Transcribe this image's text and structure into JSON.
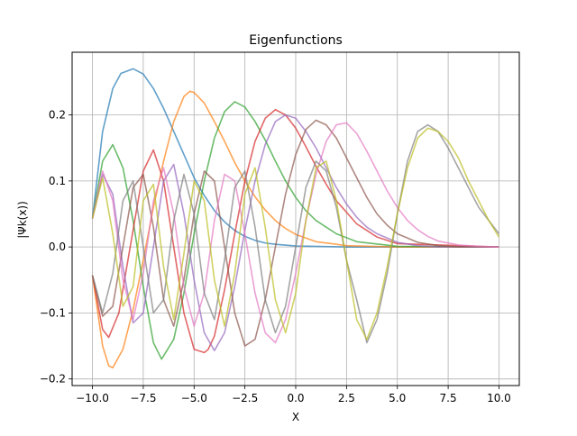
{
  "chart_data": {
    "type": "line",
    "title": "Eigenfunctions",
    "xlabel": "X",
    "ylabel": "|Ψk(x))",
    "xlim": [
      -11,
      11
    ],
    "ylim": [
      -0.21,
      0.295
    ],
    "xticks": [
      -10.0,
      -7.5,
      -5.0,
      -2.5,
      0.0,
      2.5,
      5.0,
      7.5,
      10.0
    ],
    "xtick_labels": [
      "−10.0",
      "−7.5",
      "−5.0",
      "−2.5",
      "0.0",
      "2.5",
      "5.0",
      "7.5",
      "10.0"
    ],
    "yticks": [
      -0.2,
      -0.1,
      0.0,
      0.1,
      0.2
    ],
    "ytick_labels": [
      "−0.2",
      "−0.1",
      "0.0",
      "0.1",
      "0.2"
    ],
    "grid": true,
    "legend": "none",
    "series": [
      {
        "color": "#1f77b4",
        "x": [
          -10.0,
          -9.5,
          -9.0,
          -8.6,
          -8.0,
          -7.5,
          -7.0,
          -6.5,
          -6.0,
          -5.5,
          -5.0,
          -4.5,
          -4.0,
          -3.5,
          -3.0,
          -2.5,
          -2.0,
          -1.5,
          -1.0,
          0.0,
          2.5,
          5.0,
          10.0
        ],
        "values": [
          0.043,
          0.175,
          0.24,
          0.263,
          0.27,
          0.262,
          0.24,
          0.21,
          0.175,
          0.14,
          0.105,
          0.078,
          0.055,
          0.038,
          0.025,
          0.016,
          0.01,
          0.006,
          0.004,
          0.0015,
          0.0,
          0.0,
          0.0
        ]
      },
      {
        "color": "#ff7f0e",
        "x": [
          -10.0,
          -9.5,
          -9.2,
          -9.0,
          -8.5,
          -8.0,
          -7.5,
          -7.0,
          -6.5,
          -6.0,
          -5.5,
          -5.2,
          -5.0,
          -4.5,
          -4.0,
          -3.5,
          -3.0,
          -2.5,
          -2.0,
          -1.5,
          -1.0,
          -0.5,
          0.0,
          1.0,
          2.5,
          5.0,
          10.0
        ],
        "values": [
          -0.043,
          -0.15,
          -0.18,
          -0.183,
          -0.155,
          -0.095,
          -0.02,
          0.06,
          0.13,
          0.19,
          0.228,
          0.236,
          0.234,
          0.218,
          0.19,
          0.16,
          0.128,
          0.1,
          0.076,
          0.056,
          0.04,
          0.028,
          0.019,
          0.008,
          0.002,
          0.0,
          0.0
        ]
      },
      {
        "color": "#2ca02c",
        "x": [
          -10.0,
          -9.5,
          -9.0,
          -8.5,
          -8.0,
          -7.5,
          -7.0,
          -6.6,
          -6.0,
          -5.5,
          -5.0,
          -4.5,
          -4.0,
          -3.5,
          -3.0,
          -2.5,
          -2.0,
          -1.5,
          -1.0,
          -0.5,
          0.0,
          0.5,
          1.0,
          2.0,
          3.0,
          5.0,
          10.0
        ],
        "values": [
          0.043,
          0.13,
          0.155,
          0.12,
          0.04,
          -0.06,
          -0.145,
          -0.17,
          -0.14,
          -0.07,
          0.02,
          0.1,
          0.165,
          0.205,
          0.22,
          0.212,
          0.19,
          0.162,
          0.13,
          0.1,
          0.075,
          0.055,
          0.04,
          0.02,
          0.008,
          0.001,
          0.0
        ]
      },
      {
        "color": "#d62728",
        "x": [
          -10.0,
          -9.5,
          -9.2,
          -8.7,
          -8.2,
          -7.5,
          -7.0,
          -6.5,
          -6.0,
          -5.5,
          -5.0,
          -4.5,
          -4.3,
          -4.0,
          -3.5,
          -3.0,
          -2.5,
          -2.0,
          -1.5,
          -1.0,
          -0.5,
          0.0,
          0.5,
          1.0,
          1.5,
          2.0,
          3.0,
          4.0,
          5.0,
          10.0
        ],
        "values": [
          -0.043,
          -0.125,
          -0.137,
          -0.1,
          -0.01,
          0.115,
          0.147,
          0.1,
          0.0,
          -0.1,
          -0.155,
          -0.16,
          -0.155,
          -0.135,
          -0.065,
          0.02,
          0.1,
          0.16,
          0.195,
          0.208,
          0.2,
          0.18,
          0.152,
          0.122,
          0.095,
          0.07,
          0.035,
          0.015,
          0.005,
          0.0
        ]
      },
      {
        "color": "#9467bd",
        "x": [
          -10.0,
          -9.5,
          -9.0,
          -8.5,
          -8.0,
          -7.5,
          -7.0,
          -6.5,
          -6.0,
          -5.5,
          -5.0,
          -4.5,
          -4.0,
          -3.5,
          -3.0,
          -2.5,
          -2.0,
          -1.5,
          -1.0,
          -0.5,
          0.0,
          0.5,
          1.0,
          1.5,
          2.0,
          2.5,
          3.0,
          3.5,
          4.0,
          5.0,
          6.0,
          7.0,
          10.0
        ],
        "values": [
          0.043,
          0.11,
          0.08,
          -0.03,
          -0.115,
          -0.1,
          0.0,
          0.1,
          0.125,
          0.05,
          -0.05,
          -0.13,
          -0.157,
          -0.13,
          -0.06,
          0.025,
          0.1,
          0.155,
          0.19,
          0.2,
          0.195,
          0.175,
          0.15,
          0.12,
          0.09,
          0.065,
          0.045,
          0.03,
          0.02,
          0.007,
          0.002,
          0.0,
          0.0
        ]
      },
      {
        "color": "#8c564b",
        "x": [
          -10.0,
          -9.5,
          -9.0,
          -8.5,
          -8.0,
          -7.5,
          -7.0,
          -6.5,
          -6.0,
          -5.5,
          -5.0,
          -4.5,
          -4.0,
          -3.5,
          -3.0,
          -2.5,
          -2.0,
          -1.5,
          -1.0,
          -0.5,
          0.0,
          0.5,
          1.0,
          1.5,
          2.0,
          2.5,
          3.0,
          3.5,
          4.0,
          4.5,
          5.0,
          6.0,
          7.0,
          8.0,
          10.0
        ],
        "values": [
          -0.043,
          -0.105,
          -0.09,
          0.0,
          0.09,
          0.11,
          0.03,
          -0.08,
          -0.12,
          -0.05,
          0.05,
          0.115,
          0.1,
          0.0,
          -0.1,
          -0.15,
          -0.14,
          -0.08,
          0.0,
          0.08,
          0.14,
          0.178,
          0.192,
          0.185,
          0.165,
          0.135,
          0.105,
          0.075,
          0.05,
          0.033,
          0.02,
          0.007,
          0.002,
          0.0,
          0.0
        ]
      },
      {
        "color": "#e377c2",
        "x": [
          -10.0,
          -9.5,
          -9.0,
          -8.5,
          -8.0,
          -7.5,
          -7.0,
          -6.5,
          -6.0,
          -5.5,
          -5.0,
          -4.5,
          -4.0,
          -3.5,
          -3.0,
          -2.5,
          -2.0,
          -1.5,
          -1.0,
          -0.5,
          0.0,
          0.5,
          1.0,
          1.5,
          2.0,
          2.5,
          3.0,
          3.5,
          4.0,
          4.5,
          5.0,
          5.5,
          6.0,
          6.5,
          7.0,
          8.0,
          9.0,
          10.0
        ],
        "values": [
          0.043,
          0.115,
          0.07,
          -0.05,
          -0.11,
          -0.04,
          0.07,
          0.12,
          0.05,
          -0.06,
          -0.12,
          -0.07,
          0.04,
          0.11,
          0.1,
          0.02,
          -0.07,
          -0.13,
          -0.145,
          -0.11,
          -0.04,
          0.04,
          0.11,
          0.16,
          0.185,
          0.188,
          0.172,
          0.145,
          0.115,
          0.085,
          0.06,
          0.04,
          0.026,
          0.016,
          0.009,
          0.003,
          0.001,
          0.0
        ]
      },
      {
        "color": "#7f7f7f",
        "x": [
          -10.0,
          -9.5,
          -9.0,
          -8.5,
          -8.0,
          -7.5,
          -7.0,
          -6.5,
          -6.0,
          -5.5,
          -5.0,
          -4.5,
          -4.0,
          -3.5,
          -3.0,
          -2.5,
          -2.0,
          -1.5,
          -1.0,
          -0.5,
          0.0,
          0.5,
          1.0,
          1.5,
          2.0,
          2.5,
          3.0,
          3.5,
          4.0,
          4.5,
          5.0,
          5.5,
          6.0,
          6.5,
          7.0,
          7.5,
          8.0,
          8.5,
          9.0,
          10.0
        ],
        "values": [
          -0.043,
          -0.1,
          -0.04,
          0.07,
          0.1,
          0.0,
          -0.1,
          -0.08,
          0.04,
          0.11,
          0.05,
          -0.07,
          -0.11,
          -0.02,
          0.09,
          0.115,
          0.03,
          -0.08,
          -0.13,
          -0.09,
          0.0,
          0.09,
          0.13,
          0.115,
          0.06,
          -0.02,
          -0.08,
          -0.145,
          -0.11,
          -0.04,
          0.05,
          0.13,
          0.175,
          0.185,
          0.175,
          0.15,
          0.12,
          0.09,
          0.06,
          0.02
        ]
      },
      {
        "color": "#bcbd22",
        "x": [
          -10.0,
          -9.5,
          -9.0,
          -8.5,
          -8.0,
          -7.5,
          -7.0,
          -6.5,
          -6.0,
          -5.5,
          -5.0,
          -4.5,
          -4.0,
          -3.5,
          -3.0,
          -2.5,
          -2.0,
          -1.5,
          -1.0,
          -0.5,
          0.0,
          0.5,
          1.0,
          1.5,
          2.0,
          2.5,
          3.0,
          3.5,
          4.0,
          4.5,
          5.0,
          5.5,
          6.0,
          6.5,
          7.0,
          7.5,
          8.0,
          8.5,
          9.0,
          9.5,
          10.0
        ],
        "values": [
          0.043,
          0.105,
          0.02,
          -0.09,
          -0.06,
          0.07,
          0.095,
          -0.03,
          -0.11,
          -0.01,
          0.1,
          0.07,
          -0.05,
          -0.12,
          -0.04,
          0.08,
          0.12,
          0.03,
          -0.08,
          -0.13,
          -0.07,
          0.04,
          0.12,
          0.13,
          0.07,
          -0.02,
          -0.11,
          -0.14,
          -0.1,
          -0.03,
          0.05,
          0.12,
          0.165,
          0.18,
          0.175,
          0.16,
          0.135,
          0.1,
          0.07,
          0.04,
          0.015
        ]
      }
    ]
  }
}
